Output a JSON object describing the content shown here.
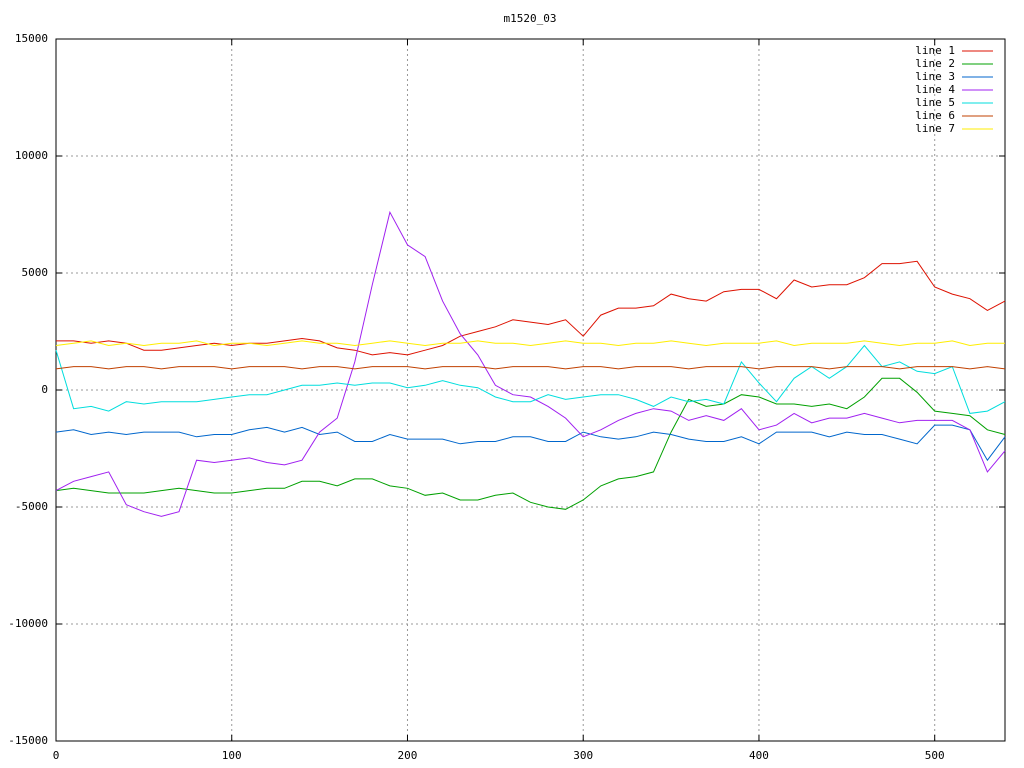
{
  "chart_data": {
    "type": "line",
    "title": "m1520_03",
    "x": [
      0,
      10,
      20,
      30,
      40,
      50,
      60,
      70,
      80,
      90,
      100,
      110,
      120,
      130,
      140,
      150,
      160,
      170,
      180,
      190,
      200,
      210,
      220,
      230,
      240,
      250,
      260,
      270,
      280,
      290,
      300,
      310,
      320,
      330,
      340,
      350,
      360,
      370,
      380,
      390,
      400,
      410,
      420,
      430,
      440,
      450,
      460,
      470,
      480,
      490,
      500,
      510,
      520,
      530,
      540
    ],
    "xlim": [
      0,
      540
    ],
    "xticks": [
      0,
      100,
      200,
      300,
      400,
      500
    ],
    "ylim": [
      -15000,
      15000
    ],
    "yticks": [
      -15000,
      -10000,
      -5000,
      0,
      5000,
      10000,
      15000
    ],
    "grid": true,
    "legend": "top-right",
    "series": [
      {
        "name": "line 1",
        "color": "#dd1100",
        "values": [
          2100,
          2100,
          2000,
          2100,
          2000,
          1700,
          1700,
          1800,
          1900,
          2000,
          1900,
          2000,
          2000,
          2100,
          2200,
          2100,
          1800,
          1700,
          1500,
          1600,
          1500,
          1700,
          1900,
          2300,
          2500,
          2700,
          3000,
          2900,
          2800,
          3000,
          2300,
          3200,
          3500,
          3500,
          3600,
          4100,
          3900,
          3800,
          4200,
          4300,
          4300,
          3900,
          4700,
          4400,
          4500,
          4500,
          4800,
          5400,
          5400,
          5500,
          4400,
          4100,
          3900,
          3400,
          3800
        ]
      },
      {
        "name": "line 2",
        "color": "#00a000",
        "values": [
          -4300,
          -4200,
          -4300,
          -4400,
          -4400,
          -4400,
          -4300,
          -4200,
          -4300,
          -4400,
          -4400,
          -4300,
          -4200,
          -4200,
          -3900,
          -3900,
          -4100,
          -3800,
          -3800,
          -4100,
          -4200,
          -4500,
          -4400,
          -4700,
          -4700,
          -4500,
          -4400,
          -4800,
          -5000,
          -5100,
          -4700,
          -4100,
          -3800,
          -3700,
          -3500,
          -1800,
          -400,
          -700,
          -600,
          -200,
          -300,
          -600,
          -600,
          -700,
          -600,
          -800,
          -300,
          500,
          500,
          -100,
          -900,
          -1000,
          -1100,
          -1700,
          -1900
        ]
      },
      {
        "name": "line 3",
        "color": "#0066cc",
        "values": [
          -1800,
          -1700,
          -1900,
          -1800,
          -1900,
          -1800,
          -1800,
          -1800,
          -2000,
          -1900,
          -1900,
          -1700,
          -1600,
          -1800,
          -1600,
          -1900,
          -1800,
          -2200,
          -2200,
          -1900,
          -2100,
          -2100,
          -2100,
          -2300,
          -2200,
          -2200,
          -2000,
          -2000,
          -2200,
          -2200,
          -1800,
          -2000,
          -2100,
          -2000,
          -1800,
          -1900,
          -2100,
          -2200,
          -2200,
          -2000,
          -2300,
          -1800,
          -1800,
          -1800,
          -2000,
          -1800,
          -1900,
          -1900,
          -2100,
          -2300,
          -1500,
          -1500,
          -1700,
          -3000,
          -2000
        ]
      },
      {
        "name": "line 4",
        "color": "#a020f0",
        "values": [
          -4300,
          -3900,
          -3700,
          -3500,
          -4900,
          -5200,
          -5400,
          -5200,
          -3000,
          -3100,
          -3000,
          -2900,
          -3100,
          -3200,
          -3000,
          -1800,
          -1200,
          1200,
          4500,
          7600,
          6200,
          5700,
          3800,
          2400,
          1500,
          200,
          -200,
          -300,
          -700,
          -1200,
          -2000,
          -1700,
          -1300,
          -1000,
          -800,
          -900,
          -1300,
          -1100,
          -1300,
          -800,
          -1700,
          -1500,
          -1000,
          -1400,
          -1200,
          -1200,
          -1000,
          -1200,
          -1400,
          -1300,
          -1300,
          -1300,
          -1700,
          -3500,
          -2600
        ]
      },
      {
        "name": "line 5",
        "color": "#00dddd",
        "values": [
          1700,
          -800,
          -700,
          -900,
          -500,
          -600,
          -500,
          -500,
          -500,
          -400,
          -300,
          -200,
          -200,
          0,
          200,
          200,
          300,
          200,
          300,
          300,
          100,
          200,
          400,
          200,
          100,
          -300,
          -500,
          -500,
          -200,
          -400,
          -300,
          -200,
          -200,
          -400,
          -700,
          -300,
          -500,
          -400,
          -600,
          1200,
          300,
          -500,
          500,
          1000,
          500,
          1000,
          1900,
          1000,
          1200,
          800,
          700,
          1000,
          -1000,
          -900,
          -500
        ]
      },
      {
        "name": "line 6",
        "color": "#c04000",
        "values": [
          900,
          1000,
          1000,
          900,
          1000,
          1000,
          900,
          1000,
          1000,
          1000,
          900,
          1000,
          1000,
          1000,
          900,
          1000,
          1000,
          900,
          1000,
          1000,
          1000,
          900,
          1000,
          1000,
          1000,
          900,
          1000,
          1000,
          1000,
          900,
          1000,
          1000,
          900,
          1000,
          1000,
          1000,
          900,
          1000,
          1000,
          1000,
          900,
          1000,
          1000,
          1000,
          900,
          1000,
          1000,
          1000,
          900,
          1000,
          1000,
          1000,
          900,
          1000,
          900
        ]
      },
      {
        "name": "line 7",
        "color": "#ffee00",
        "values": [
          1900,
          2000,
          2100,
          1900,
          2000,
          1900,
          2000,
          2000,
          2100,
          1900,
          2000,
          2000,
          1900,
          2000,
          2100,
          2000,
          2000,
          1900,
          2000,
          2100,
          2000,
          1900,
          2000,
          2000,
          2100,
          2000,
          2000,
          1900,
          2000,
          2100,
          2000,
          2000,
          1900,
          2000,
          2000,
          2100,
          2000,
          1900,
          2000,
          2000,
          2000,
          2100,
          1900,
          2000,
          2000,
          2000,
          2100,
          2000,
          1900,
          2000,
          2000,
          2100,
          1900,
          2000,
          2000
        ]
      }
    ]
  }
}
